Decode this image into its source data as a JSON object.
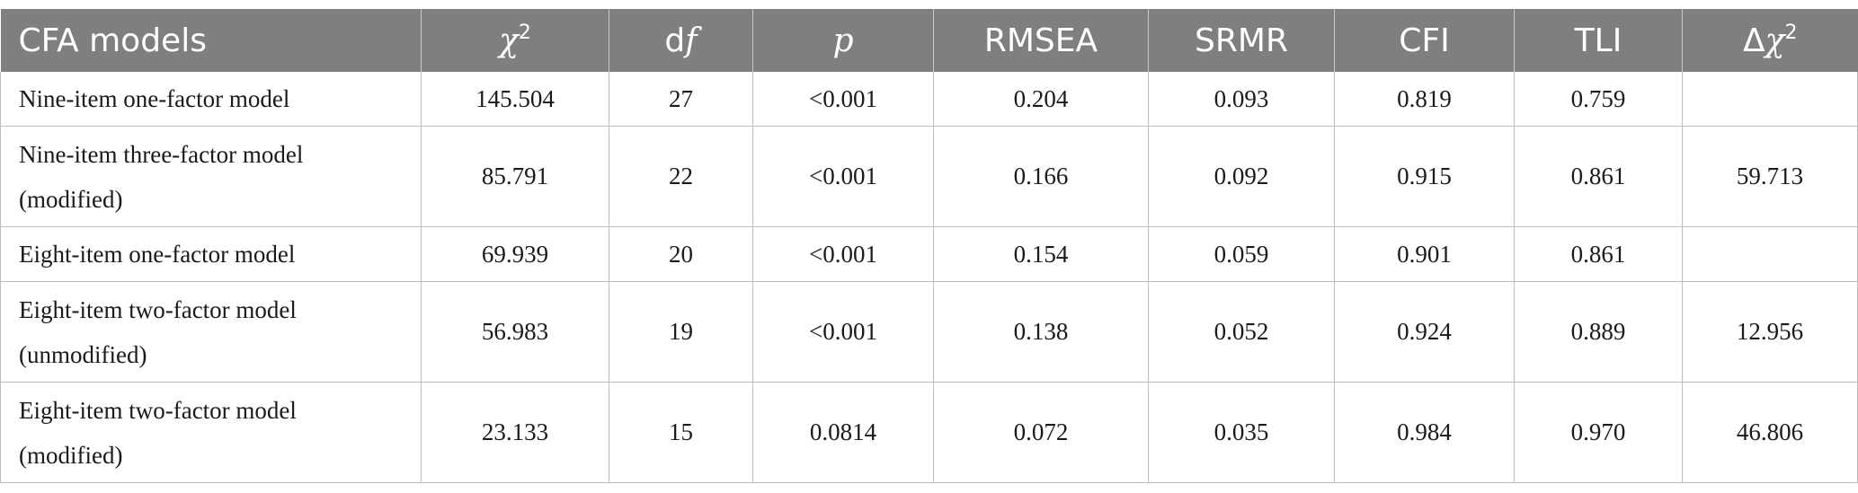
{
  "table": {
    "headers": [
      {
        "text": "CFA models"
      },
      {
        "pre": "",
        "ital": "χ",
        "sup": "2"
      },
      {
        "pre": "d",
        "ital": "f",
        "sup": ""
      },
      {
        "pre": "",
        "ital": "p",
        "sup": ""
      },
      {
        "text": "RMSEA"
      },
      {
        "text": "SRMR"
      },
      {
        "text": "CFI"
      },
      {
        "text": "TLI"
      },
      {
        "pre": "Δ",
        "ital": "χ",
        "sup": "2"
      }
    ],
    "rows": [
      {
        "model": [
          "Nine-item one-factor model"
        ],
        "chi2": "145.504",
        "df": "27",
        "p": "<0.001",
        "rmsea": "0.204",
        "srmr": "0.093",
        "cfi": "0.819",
        "tli": "0.759",
        "dchi2": ""
      },
      {
        "model": [
          "Nine-item three-factor model",
          "(modified)"
        ],
        "chi2": "85.791",
        "df": "22",
        "p": "<0.001",
        "rmsea": "0.166",
        "srmr": "0.092",
        "cfi": "0.915",
        "tli": "0.861",
        "dchi2": "59.713"
      },
      {
        "model": [
          "Eight-item one-factor model"
        ],
        "chi2": "69.939",
        "df": "20",
        "p": "<0.001",
        "rmsea": "0.154",
        "srmr": "0.059",
        "cfi": "0.901",
        "tli": "0.861",
        "dchi2": ""
      },
      {
        "model": [
          "Eight-item two-factor model",
          "(unmodified)"
        ],
        "chi2": "56.983",
        "df": "19",
        "p": "<0.001",
        "rmsea": "0.138",
        "srmr": "0.052",
        "cfi": "0.924",
        "tli": "0.889",
        "dchi2": "12.956"
      },
      {
        "model": [
          "Eight-item two-factor model",
          "(modified)"
        ],
        "chi2": "23.133",
        "df": "15",
        "p": "0.0814",
        "rmsea": "0.072",
        "srmr": "0.035",
        "cfi": "0.984",
        "tli": "0.970",
        "dchi2": "46.806"
      }
    ]
  }
}
